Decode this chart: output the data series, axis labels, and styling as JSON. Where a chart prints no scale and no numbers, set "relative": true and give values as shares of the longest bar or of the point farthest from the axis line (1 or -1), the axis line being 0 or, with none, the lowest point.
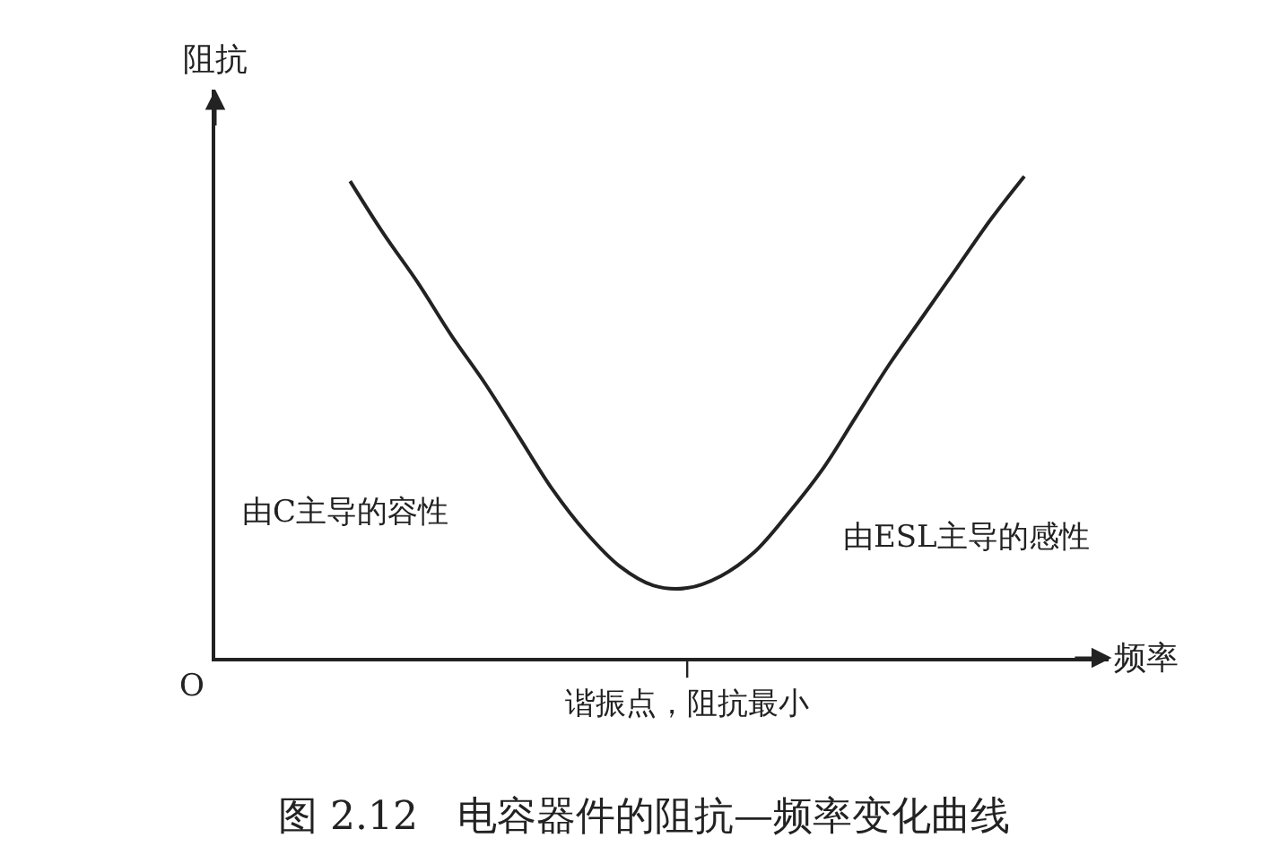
{
  "chart_data": {
    "type": "line",
    "relative": true,
    "title": "图 2.12　电容器件的阻抗—频率变化曲线",
    "xlabel": "频率",
    "ylabel": "阻抗",
    "categories": [
      null,
      null,
      null,
      null,
      null,
      null,
      null,
      null,
      null,
      null,
      null,
      null,
      null,
      null,
      null,
      null,
      null,
      null,
      null,
      null,
      null
    ],
    "series": [
      {
        "color": "#222222",
        "values": [
          0.99,
          0.88,
          0.78,
          0.67,
          0.57,
          0.46,
          0.35,
          0.26,
          0.19,
          0.15,
          0.145,
          0.17,
          0.22,
          0.3,
          0.39,
          0.5,
          0.61,
          0.71,
          0.81,
          0.91,
          1.0
        ]
      }
    ],
    "annotations": [
      "O",
      "由C主导的容性",
      "由ESL主导的感性",
      "谐振点，阻抗最小"
    ],
    "marker": "none",
    "line_style": "solid"
  }
}
